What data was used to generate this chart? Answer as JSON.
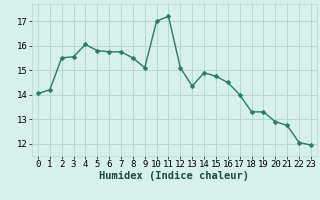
{
  "x": [
    0,
    1,
    2,
    3,
    4,
    5,
    6,
    7,
    8,
    9,
    10,
    11,
    12,
    13,
    14,
    15,
    16,
    17,
    18,
    19,
    20,
    21,
    22,
    23
  ],
  "y": [
    14.05,
    14.2,
    15.5,
    15.55,
    16.05,
    15.8,
    15.75,
    15.75,
    15.5,
    15.1,
    17.0,
    17.2,
    15.1,
    14.35,
    14.9,
    14.75,
    14.5,
    14.0,
    13.3,
    13.3,
    12.9,
    12.75,
    12.05,
    11.95
  ],
  "line_color": "#2a7a68",
  "marker": "D",
  "markersize": 2.5,
  "linewidth": 1.0,
  "bg_color": "#d6f0eb",
  "grid_color": "#b8d8d2",
  "xlabel": "Humidex (Indice chaleur)",
  "xlabel_fontsize": 7.5,
  "yticks": [
    12,
    13,
    14,
    15,
    16,
    17
  ],
  "xticks": [
    0,
    1,
    2,
    3,
    4,
    5,
    6,
    7,
    8,
    9,
    10,
    11,
    12,
    13,
    14,
    15,
    16,
    17,
    18,
    19,
    20,
    21,
    22,
    23
  ],
  "ylim": [
    11.5,
    17.7
  ],
  "xlim": [
    -0.5,
    23.5
  ],
  "tick_fontsize": 6.5
}
